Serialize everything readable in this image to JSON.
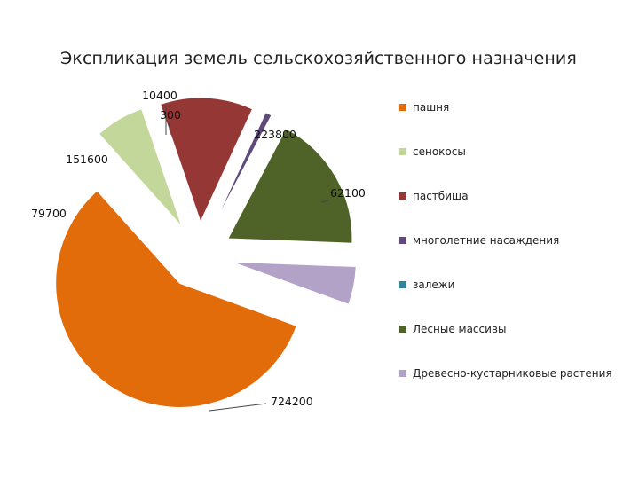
{
  "chart_data": {
    "type": "pie",
    "title": "Экспликация земель  сельскохозяйственного назначения",
    "categories": [
      "пашня",
      "сенокосы",
      "пастбища",
      "многолетние насаждения",
      "залежи",
      "Лесные массивы",
      "Древесно-кустарниковые растения"
    ],
    "values": [
      724200,
      79700,
      151600,
      10400,
      300,
      223800,
      62100
    ],
    "data_labels": [
      "724200",
      "79700",
      "151600",
      "10400",
      "300",
      "223800",
      "62100"
    ],
    "colors": [
      "#e36c0a",
      "#c4d79b",
      "#953735",
      "#604a7b",
      "#31859c",
      "#4f6228",
      "#b3a2c7"
    ],
    "legend_position": "right",
    "exploded": true
  }
}
